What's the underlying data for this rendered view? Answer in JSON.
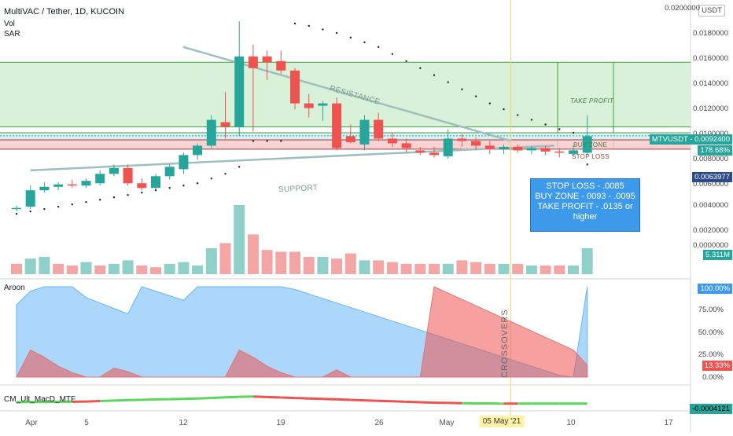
{
  "legend": {
    "title": "MultiVAC / Tether, 1D, KUCOIN",
    "vol": "Vol",
    "sar": "SAR",
    "aroon": "Aroon",
    "macd": "CM_Ult_MacD_MTF"
  },
  "currency_badge": "USDT",
  "price_axis": [
    "0.0200000",
    "0.0180000",
    "0.0160000",
    "0.0140000",
    "0.0120000",
    "0.0100000",
    "0.0080000",
    "0.0060000",
    "0.0040000",
    "0.0020000",
    "0.0000000"
  ],
  "price_tags": {
    "symbol": "MTVUSDT",
    "last": "0.0092400",
    "change": "178.68%",
    "level": "0.0063977",
    "volume": "5.311M"
  },
  "aroon_axis": [
    "100.00%",
    "75.00%",
    "50.00%",
    "25.00%",
    "0.00%"
  ],
  "aroon_tags": {
    "up": "100.00%",
    "down": "13.33%"
  },
  "macd_tag": "-0.0004121",
  "x_axis": [
    "Apr",
    "5",
    "12",
    "19",
    "26",
    "May",
    "05 May '21",
    "10",
    "17"
  ],
  "annotations": {
    "resistance": "RESISTANCE",
    "support": "SUPPORT",
    "take_profit": "TAKE PROFIT",
    "buy_zone": "BUY ZONE",
    "stop_loss": "STOP LOSS",
    "crossovers": "CROSSOVERS"
  },
  "info_box": {
    "line1": "STOP LOSS - .0085",
    "line2": "BUY ZONE - 0093 - .0095",
    "line3": "TAKE PROFIT - .0135 or",
    "line4": "higher"
  },
  "colors": {
    "up": "#26a69a",
    "down": "#ef5350",
    "zone_green": "#c8ebc8",
    "zone_red": "#f8c8c8",
    "info": "#3d9aeb"
  },
  "chart_data": {
    "type": "candlestick",
    "title": "MultiVAC / Tether, 1D, KUCOIN",
    "candles": [
      {
        "o": 0.003,
        "h": 0.0033,
        "l": 0.0028,
        "c": 0.0031
      },
      {
        "o": 0.0032,
        "h": 0.005,
        "l": 0.003,
        "c": 0.0046
      },
      {
        "o": 0.0046,
        "h": 0.0053,
        "l": 0.0044,
        "c": 0.0049
      },
      {
        "o": 0.0049,
        "h": 0.0053,
        "l": 0.0046,
        "c": 0.0051
      },
      {
        "o": 0.0051,
        "h": 0.0055,
        "l": 0.0048,
        "c": 0.005
      },
      {
        "o": 0.005,
        "h": 0.0056,
        "l": 0.0048,
        "c": 0.0054
      },
      {
        "o": 0.0052,
        "h": 0.0063,
        "l": 0.005,
        "c": 0.006
      },
      {
        "o": 0.006,
        "h": 0.0068,
        "l": 0.0058,
        "c": 0.0065
      },
      {
        "o": 0.0065,
        "h": 0.0068,
        "l": 0.005,
        "c": 0.0052
      },
      {
        "o": 0.0052,
        "h": 0.0056,
        "l": 0.0046,
        "c": 0.0048
      },
      {
        "o": 0.0048,
        "h": 0.006,
        "l": 0.0047,
        "c": 0.0058
      },
      {
        "o": 0.0058,
        "h": 0.0068,
        "l": 0.0055,
        "c": 0.0066
      },
      {
        "o": 0.0064,
        "h": 0.0078,
        "l": 0.006,
        "c": 0.0076
      },
      {
        "o": 0.0076,
        "h": 0.0086,
        "l": 0.0072,
        "c": 0.0084
      },
      {
        "o": 0.0084,
        "h": 0.011,
        "l": 0.0082,
        "c": 0.0106
      },
      {
        "o": 0.0104,
        "h": 0.013,
        "l": 0.009,
        "c": 0.01
      },
      {
        "o": 0.01,
        "h": 0.019,
        "l": 0.0092,
        "c": 0.016
      },
      {
        "o": 0.016,
        "h": 0.017,
        "l": 0.0096,
        "c": 0.015
      },
      {
        "o": 0.016,
        "h": 0.0165,
        "l": 0.014,
        "c": 0.0155
      },
      {
        "o": 0.0156,
        "h": 0.0165,
        "l": 0.0145,
        "c": 0.0148
      },
      {
        "o": 0.0148,
        "h": 0.015,
        "l": 0.0115,
        "c": 0.012
      },
      {
        "o": 0.012,
        "h": 0.0128,
        "l": 0.0108,
        "c": 0.0116
      },
      {
        "o": 0.0118,
        "h": 0.0122,
        "l": 0.0105,
        "c": 0.012
      },
      {
        "o": 0.012,
        "h": 0.0125,
        "l": 0.008,
        "c": 0.0082
      },
      {
        "o": 0.0092,
        "h": 0.0102,
        "l": 0.0086,
        "c": 0.0087
      },
      {
        "o": 0.0085,
        "h": 0.011,
        "l": 0.008,
        "c": 0.0106
      },
      {
        "o": 0.0106,
        "h": 0.0112,
        "l": 0.0088,
        "c": 0.009
      },
      {
        "o": 0.009,
        "h": 0.0095,
        "l": 0.0083,
        "c": 0.0086
      },
      {
        "o": 0.0086,
        "h": 0.009,
        "l": 0.0078,
        "c": 0.0082
      },
      {
        "o": 0.008,
        "h": 0.0083,
        "l": 0.0076,
        "c": 0.0078
      },
      {
        "o": 0.0078,
        "h": 0.0083,
        "l": 0.0074,
        "c": 0.0076
      },
      {
        "o": 0.0075,
        "h": 0.0098,
        "l": 0.0073,
        "c": 0.009
      },
      {
        "o": 0.009,
        "h": 0.0094,
        "l": 0.0083,
        "c": 0.0088
      },
      {
        "o": 0.0088,
        "h": 0.0091,
        "l": 0.008,
        "c": 0.0084
      },
      {
        "o": 0.0084,
        "h": 0.0088,
        "l": 0.0077,
        "c": 0.0081
      },
      {
        "o": 0.0081,
        "h": 0.0085,
        "l": 0.0077,
        "c": 0.0083
      },
      {
        "o": 0.0083,
        "h": 0.0085,
        "l": 0.0078,
        "c": 0.008
      },
      {
        "o": 0.008,
        "h": 0.0084,
        "l": 0.0077,
        "c": 0.0082
      },
      {
        "o": 0.0082,
        "h": 0.0084,
        "l": 0.0076,
        "c": 0.0079
      },
      {
        "o": 0.0079,
        "h": 0.0082,
        "l": 0.0074,
        "c": 0.0078
      },
      {
        "o": 0.0077,
        "h": 0.0084,
        "l": 0.0075,
        "c": 0.008
      },
      {
        "o": 0.0078,
        "h": 0.011,
        "l": 0.0076,
        "c": 0.0092
      }
    ],
    "volume": [
      0.6,
      0.9,
      1.0,
      0.6,
      0.5,
      0.7,
      0.5,
      0.6,
      0.8,
      0.5,
      0.4,
      0.6,
      0.7,
      0.5,
      1.5,
      1.8,
      4.0,
      2.3,
      1.4,
      1.3,
      1.3,
      1.0,
      1.0,
      0.9,
      1.2,
      0.8,
      0.8,
      0.7,
      0.6,
      0.6,
      0.6,
      0.6,
      0.8,
      0.7,
      0.6,
      0.6,
      0.6,
      0.5,
      0.5,
      0.5,
      0.5,
      1.5
    ],
    "volume_up": [
      false,
      true,
      true,
      false,
      false,
      true,
      false,
      true,
      true,
      false,
      false,
      true,
      true,
      true,
      true,
      false,
      true,
      false,
      false,
      false,
      false,
      false,
      true,
      false,
      false,
      true,
      false,
      false,
      false,
      false,
      false,
      true,
      false,
      false,
      false,
      true,
      false,
      true,
      false,
      false,
      true,
      true
    ],
    "sar": [
      0.0026,
      0.0028,
      0.003,
      0.0032,
      0.0034,
      0.0036,
      0.0038,
      0.004,
      0.0042,
      0.0044,
      0.0046,
      0.0048,
      0.005,
      0.0052,
      0.0056,
      0.006,
      0.0066,
      0.0088,
      0.0088,
      0.0088,
      0.0188,
      0.0186,
      0.0183,
      0.018,
      0.0176,
      0.0172,
      0.0168,
      0.0162,
      0.0156,
      0.015,
      0.0144,
      0.0138,
      0.0132,
      0.0126,
      0.012,
      0.0115,
      0.011,
      0.0106,
      0.0102,
      0.0098,
      0.0095,
      0.0068
    ],
    "levels": {
      "take_profit": [
        0.01,
        0.0155
      ],
      "buy_zone": [
        0.0093,
        0.0095
      ],
      "stop_loss": [
        0.0081,
        0.0089
      ],
      "current": 0.00924,
      "support_line": [
        0.0063,
        0.0084
      ],
      "resistance_line": [
        0.0168,
        0.0088
      ]
    },
    "aroon_up": [
      80,
      95,
      100,
      100,
      100,
      88,
      82,
      76,
      70,
      100,
      95,
      90,
      85,
      100,
      100,
      100,
      100,
      100,
      100,
      100,
      97,
      92,
      87,
      82,
      77,
      72,
      67,
      62,
      57,
      52,
      47,
      42,
      37,
      32,
      27,
      22,
      17,
      12,
      7,
      2,
      0,
      100
    ],
    "aroon_down": [
      0,
      30,
      22,
      12,
      5,
      0,
      0,
      10,
      6,
      0,
      0,
      0,
      0,
      0,
      0,
      0,
      30,
      22,
      12,
      5,
      0,
      0,
      0,
      8,
      0,
      0,
      0,
      0,
      0,
      0,
      100,
      93,
      86,
      79,
      72,
      65,
      58,
      51,
      44,
      37,
      30,
      13.33
    ],
    "macd": [
      0,
      0.1,
      0.1,
      0.2,
      0.2,
      0.3,
      0.5,
      0.7,
      0.9,
      1.0,
      1.2,
      1.3,
      1.4,
      1.6,
      1.8,
      2.1,
      2.3,
      2.4,
      2.2,
      2.0,
      1.8,
      1.6,
      1.4,
      1.2,
      1.0,
      0.8,
      0.6,
      0.4,
      0.2,
      0.0,
      -0.2,
      -0.3,
      -0.4,
      -0.5,
      -0.5,
      -0.6,
      -0.6,
      -0.6,
      -0.6,
      -0.6,
      -0.6,
      -0.6
    ],
    "macd_rising": [
      true,
      true,
      true,
      true,
      true,
      false,
      false,
      true,
      true,
      true,
      true,
      true,
      true,
      true,
      true,
      true,
      true,
      true,
      false,
      false,
      false,
      false,
      false,
      false,
      false,
      false,
      false,
      false,
      false,
      false,
      false,
      false,
      false,
      true,
      true,
      true,
      false,
      true,
      true,
      true,
      true,
      true
    ]
  }
}
